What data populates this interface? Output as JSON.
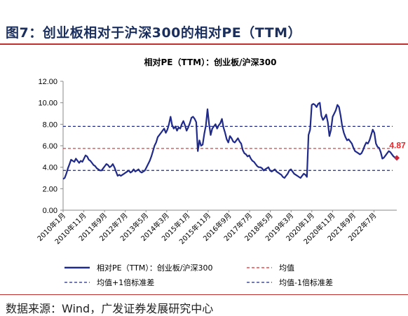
{
  "figure": {
    "title": "图7：创业板相对于沪深300的相对PE（TTM）",
    "source": "数据来源：Wind，广发证券发展研究中心"
  },
  "chart_data": {
    "type": "line",
    "title": "相对PE（TTM）：创业板/沪深300",
    "ylim": [
      0,
      12
    ],
    "yticks": [
      "0.00",
      "2.00",
      "4.00",
      "6.00",
      "8.00",
      "10.00",
      "12.00"
    ],
    "xtick_labels": [
      "2010年1月",
      "2010年11月",
      "2011年9月",
      "2012年7月",
      "2013年5月",
      "2014年3月",
      "2015年1月",
      "2015年11月",
      "2016年9月",
      "2017年7月",
      "2018年5月",
      "2019年3月",
      "2020年1月",
      "2020年11月",
      "2021年9月",
      "2022年7月"
    ],
    "x_start": "2010-01",
    "x_end": "2023-06",
    "end_label": "4.87",
    "grid": false,
    "legend_position": "bottom",
    "colors": {
      "series": "#1f2a8a",
      "mean": "#e8262a",
      "band": "#1f2a8a",
      "end_marker": "#c8283c",
      "end_label": "#e8262a"
    },
    "series": [
      {
        "name": "相对PE（TTM）：创业板/沪深300",
        "values": [
          2.9,
          3.0,
          3.4,
          3.9,
          4.3,
          4.7,
          4.6,
          4.5,
          4.8,
          4.6,
          4.4,
          4.6,
          4.5,
          4.8,
          5.1,
          5.0,
          4.7,
          4.6,
          4.4,
          4.2,
          4.1,
          3.9,
          3.8,
          3.7,
          3.7,
          3.9,
          4.1,
          4.3,
          4.2,
          4.0,
          4.1,
          4.3,
          4.0,
          3.6,
          3.2,
          3.3,
          3.2,
          3.3,
          3.4,
          3.5,
          3.6,
          3.7,
          3.5,
          3.6,
          3.8,
          3.6,
          3.7,
          3.8,
          3.6,
          3.5,
          3.6,
          3.7,
          4.0,
          4.3,
          4.6,
          5.0,
          5.5,
          6.0,
          6.3,
          6.8,
          7.0,
          7.2,
          7.4,
          7.6,
          7.2,
          7.5,
          8.0,
          8.7,
          7.9,
          7.6,
          7.8,
          7.4,
          7.7,
          7.6,
          8.0,
          8.3,
          7.9,
          7.4,
          7.7,
          8.1,
          8.6,
          8.7,
          8.5,
          8.2,
          5.5,
          6.5,
          6.0,
          6.1,
          7.1,
          7.9,
          9.4,
          8.0,
          7.0,
          7.6,
          7.8,
          8.0,
          7.6,
          7.9,
          8.1,
          8.5,
          7.7,
          7.2,
          6.6,
          6.3,
          6.9,
          6.7,
          6.4,
          6.3,
          6.5,
          6.7,
          6.4,
          6.2,
          5.6,
          5.3,
          5.2,
          5.0,
          5.1,
          4.8,
          4.6,
          4.5,
          4.3,
          4.1,
          4.0,
          4.0,
          3.9,
          3.7,
          3.8,
          3.9,
          4.0,
          3.7,
          3.6,
          3.7,
          3.8,
          3.6,
          3.5,
          3.4,
          3.3,
          3.1,
          3.0,
          3.2,
          3.4,
          3.7,
          3.8,
          3.6,
          3.4,
          3.3,
          3.2,
          3.1,
          3.0,
          3.2,
          3.4,
          3.3,
          3.1,
          7.0,
          7.5,
          9.8,
          9.9,
          9.8,
          9.6,
          9.9,
          10.0,
          8.8,
          8.4,
          8.6,
          8.9,
          8.2,
          6.9,
          7.5,
          8.7,
          9.0,
          9.3,
          9.8,
          9.6,
          8.8,
          7.8,
          7.2,
          6.8,
          6.5,
          6.6,
          6.4,
          6.2,
          5.8,
          5.5,
          5.4,
          5.3,
          5.2,
          5.3,
          5.6,
          6.0,
          6.3,
          6.2,
          6.5,
          7.0,
          7.5,
          7.2,
          6.2,
          5.9,
          5.8,
          5.4,
          4.8,
          4.9,
          5.1,
          5.3,
          5.5,
          5.4,
          5.2,
          5.0,
          4.9,
          4.87
        ]
      }
    ],
    "reference_lines": [
      {
        "name": "均值",
        "value": 5.75,
        "style": "dashed",
        "color": "#e8262a"
      },
      {
        "name": "均值+1倍标准差",
        "value": 7.8,
        "style": "dashed",
        "color": "#1f2a8a"
      },
      {
        "name": "均值-1倍标准差",
        "value": 3.7,
        "style": "dashed",
        "color": "#1f2a8a"
      }
    ],
    "legend": [
      {
        "label": "相对PE（TTM）：创业板/沪深300",
        "style": "solid",
        "color": "#1f2a8a"
      },
      {
        "label": "均值",
        "style": "dashed",
        "color": "#e8262a"
      },
      {
        "label": "均值+1倍标准差",
        "style": "dashed",
        "color": "#1f2a8a"
      },
      {
        "label": "均值-1倍标准差",
        "style": "dashed",
        "color": "#1f2a8a"
      }
    ]
  }
}
